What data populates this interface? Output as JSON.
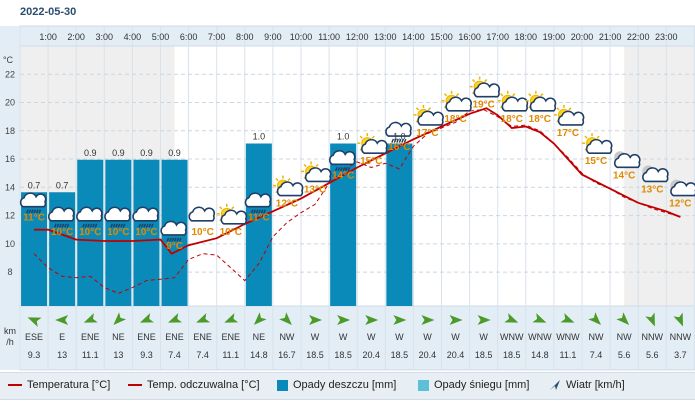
{
  "page": {
    "date": "2022-05-30"
  },
  "chart_data": {
    "type": "line",
    "hours": [
      "1:00",
      "2:00",
      "3:00",
      "4:00",
      "5:00",
      "6:00",
      "7:00",
      "8:00",
      "9:00",
      "10:00",
      "11:00",
      "12:00",
      "13:00",
      "14:00",
      "15:00",
      "16:00",
      "17:00",
      "18:00",
      "19:00",
      "20:00",
      "21:00",
      "22:00",
      "23:00"
    ],
    "temp_axis": {
      "unit_label": "°C",
      "ticks": [
        8,
        10,
        12,
        14,
        16,
        18,
        20,
        22
      ],
      "ylim": [
        5.6,
        24
      ]
    },
    "precip_axis": {
      "ylim": [
        0,
        1.6
      ]
    },
    "temperature_labels": [
      {
        "hour": 1,
        "text": "11°C",
        "icon": "rain-cloud-icon"
      },
      {
        "hour": 2,
        "text": "10°C",
        "icon": "rain-cloud-icon"
      },
      {
        "hour": 3,
        "text": "10°C",
        "icon": "rain-cloud-icon"
      },
      {
        "hour": 4,
        "text": "10°C",
        "icon": "rain-cloud-icon"
      },
      {
        "hour": 5,
        "text": "10°C",
        "icon": "rain-cloud-icon"
      },
      {
        "hour": 6,
        "text": "9°C",
        "icon": "rain-cloud-icon"
      },
      {
        "hour": 7,
        "text": "10°C",
        "icon": "cloud-icon"
      },
      {
        "hour": 8,
        "text": "10°C",
        "icon": "sun-cloud-icon"
      },
      {
        "hour": 9,
        "text": "11°C",
        "icon": "rain-cloud-icon"
      },
      {
        "hour": 10,
        "text": "12°C",
        "icon": "sun-cloud-icon"
      },
      {
        "hour": 11,
        "text": "13°C",
        "icon": "sun-cloud-icon"
      },
      {
        "hour": 12,
        "text": "14°C",
        "icon": "rain-cloud-icon"
      },
      {
        "hour": 13,
        "text": "15°C",
        "icon": "sun-cloud-icon"
      },
      {
        "hour": 14,
        "text": "16°C",
        "icon": "rain-cloud-icon"
      },
      {
        "hour": 15,
        "text": "17°C",
        "icon": "sun-cloud-icon"
      },
      {
        "hour": 16,
        "text": "18°C",
        "icon": "sun-cloud-icon"
      },
      {
        "hour": 17,
        "text": "19°C",
        "icon": "sun-cloud-icon"
      },
      {
        "hour": 18,
        "text": "18°C",
        "icon": "sun-cloud-icon"
      },
      {
        "hour": 19,
        "text": "18°C",
        "icon": "sun-cloud-icon"
      },
      {
        "hour": 20,
        "text": "17°C",
        "icon": "sun-cloud-icon"
      },
      {
        "hour": 21,
        "text": "15°C",
        "icon": "sun-cloud-icon"
      },
      {
        "hour": 22,
        "text": "14°C",
        "icon": "moon-cloud-icon"
      },
      {
        "hour": 23,
        "text": "13°C",
        "icon": "moon-cloud-icon"
      },
      {
        "hour": 24,
        "text": "12°C",
        "icon": "moon-cloud-icon"
      }
    ],
    "series": [
      {
        "name": "Temperatura [°C]",
        "style": "solid",
        "color": "#c00000",
        "x": [
          0.5,
          1,
          2,
          3,
          4,
          5,
          5.4,
          6,
          7,
          8,
          9,
          10,
          11,
          12,
          13,
          14,
          15,
          16,
          16.6,
          17,
          17.5,
          18,
          18.5,
          19,
          20,
          21,
          22,
          23,
          23.5
        ],
        "y": [
          11,
          11,
          10.3,
          10.2,
          10.2,
          10.3,
          9.3,
          9.9,
          10.4,
          11.4,
          12.3,
          13.2,
          14.3,
          15.4,
          16.4,
          17.4,
          18.3,
          19.2,
          19.6,
          19.1,
          18.2,
          18.3,
          17.9,
          17.1,
          14.9,
          13.9,
          12.9,
          12.3,
          11.9
        ]
      },
      {
        "name": "Temp. odczuwalna [°C]",
        "style": "dashed",
        "color": "#c00000",
        "x": [
          0.5,
          1,
          1.5,
          2,
          2.5,
          3,
          3.5,
          4,
          4.5,
          5,
          5.5,
          6,
          6.5,
          7,
          7.5,
          8,
          8.5,
          9,
          9.5,
          10,
          10.5,
          11,
          11.5,
          12,
          12.5,
          13,
          13.5,
          14,
          14.5,
          15,
          15.5,
          16,
          16.5,
          17,
          17.5,
          18,
          18.5,
          19,
          19.5,
          20,
          20.5,
          21,
          21.5,
          22,
          22.5,
          23,
          23.5
        ],
        "y": [
          9.3,
          8.3,
          7.7,
          7.6,
          7.7,
          6.9,
          6.5,
          6.9,
          7.4,
          7.5,
          7.6,
          8.9,
          9.3,
          9.2,
          8.3,
          7.4,
          8.6,
          10.5,
          11.5,
          12.2,
          12.8,
          14.3,
          15.2,
          15.8,
          15.4,
          15.7,
          15.3,
          16.9,
          17.8,
          18.2,
          18.6,
          19.4,
          19.5,
          19.0,
          18.3,
          18.4,
          18.0,
          17.1,
          16.1,
          15.0,
          14.3,
          13.9,
          13.3,
          12.9,
          12.5,
          12.2,
          11.9
        ]
      }
    ],
    "precipitation": {
      "name": "Opady deszczu [mm]",
      "x": [
        0.5,
        1.5,
        2.5,
        3.5,
        4.5,
        5.5,
        8.5,
        11.5,
        13.5
      ],
      "values": [
        0.7,
        0.7,
        0.9,
        0.9,
        0.9,
        0.9,
        1.0,
        1.0,
        1.0
      ],
      "labels": [
        "0.7",
        "0.7",
        "0.9",
        "0.9",
        "0.9",
        "0.9",
        "1.0",
        "1.0",
        "1.0"
      ],
      "color": "#0a8ab8"
    },
    "wind": {
      "unit_label": "km/h",
      "directions": [
        "ESE",
        "E",
        "ENE",
        "NE",
        "ENE",
        "ENE",
        "ENE",
        "ENE",
        "NE",
        "NW",
        "W",
        "W",
        "W",
        "W",
        "W",
        "W",
        "W",
        "WNW",
        "WNW",
        "WNW",
        "NW",
        "NW",
        "NNW",
        "NNW"
      ],
      "speeds": [
        "9.3",
        "13",
        "11.1",
        "13",
        "9.3",
        "7.4",
        "7.4",
        "11.1",
        "14.8",
        "16.7",
        "18.5",
        "18.5",
        "20.4",
        "18.5",
        "20.4",
        "20.4",
        "18.5",
        "18.5",
        "14.8",
        "11.1",
        "7.4",
        "5.6",
        "5.6",
        "3.7"
      ]
    },
    "legend": {
      "temp": "Temperatura [°C]",
      "feels": "Temp. odczuwalna [°C]",
      "rain": "Opady deszczu [mm]",
      "snow": "Opady śniegu [mm]",
      "wind": "Wiatr [km/h]"
    },
    "colors": {
      "line": "#c00000",
      "rain": "#0a8ab8",
      "snow": "#5bc0d8",
      "label": "#e08a00",
      "header_bg": "#e3edf5",
      "night_bg": "#efefef"
    }
  }
}
